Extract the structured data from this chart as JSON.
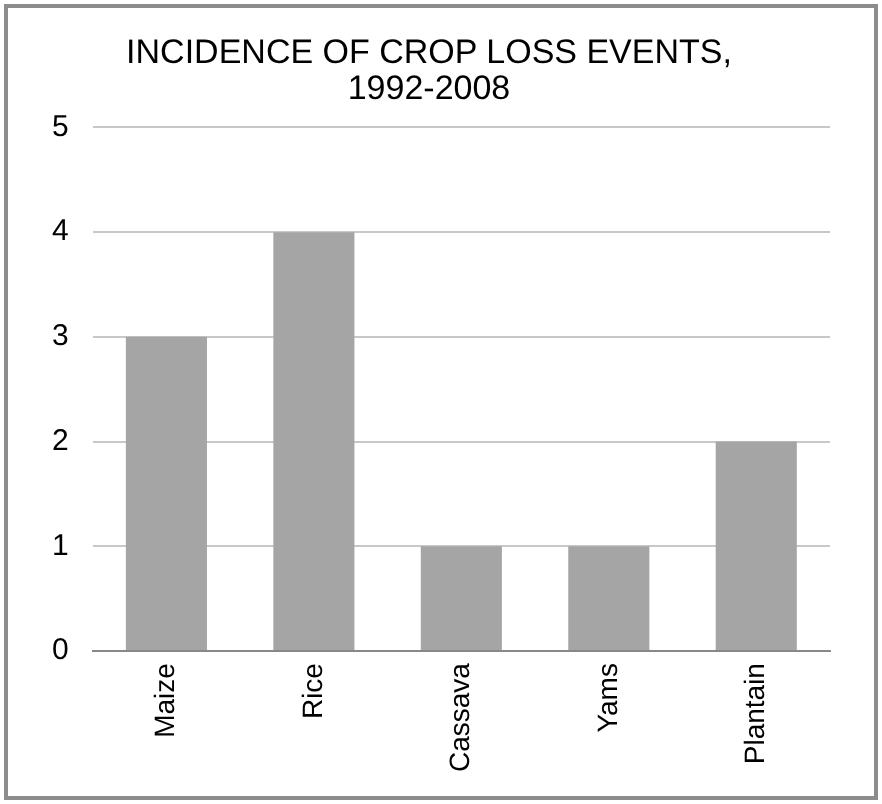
{
  "chart_data": {
    "type": "bar",
    "title": "INCIDENCE OF CROP LOSS EVENTS, 1992-2008",
    "categories": [
      "Maize",
      "Rice",
      "Cassava",
      "Yams",
      "Plantain"
    ],
    "values": [
      3,
      4,
      1,
      1,
      2
    ],
    "color": "#a5a5a5",
    "ylim": [
      0,
      5
    ],
    "yticks": [
      0,
      1,
      2,
      3,
      4,
      5
    ],
    "grid": "y",
    "legend": false
  }
}
